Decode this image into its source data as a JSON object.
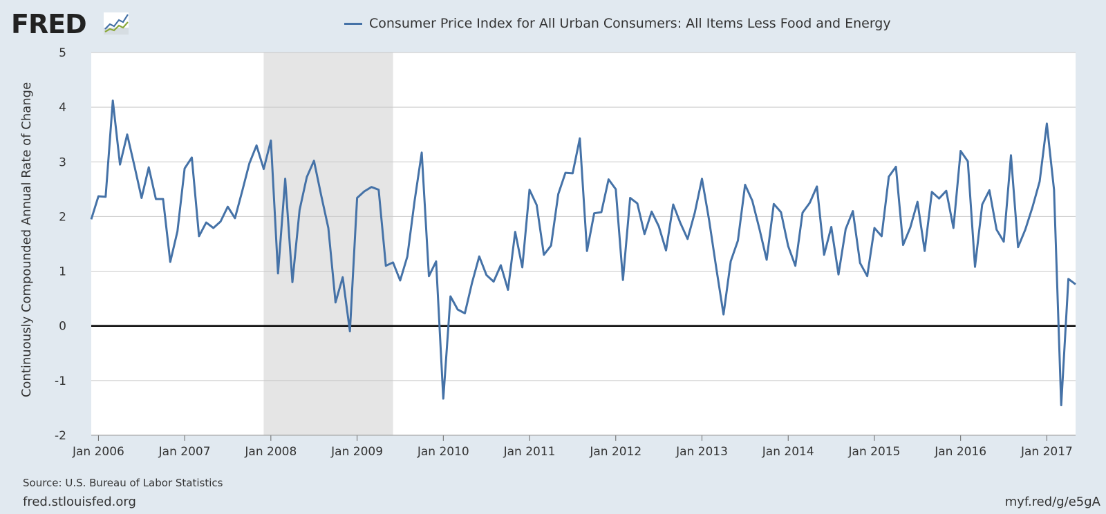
{
  "branding": {
    "logo_text": "FRED",
    "site": "fred.stlouisfed.org",
    "short_url": "myf.red/g/e5gA",
    "source": "Source: U.S. Bureau of Labor Statistics"
  },
  "colors": {
    "series": "#4572a7",
    "recession": "#e5e5e5",
    "background": "#e1e9f0",
    "plot": "#ffffff",
    "grid": "#c8c8c8",
    "zero_line": "#000000"
  },
  "chart_data": {
    "type": "line",
    "ylabel": "Continuously Compounded Annual Rate of Change",
    "xlabel": "",
    "ylim": [
      -2,
      5
    ],
    "xlim": [
      "2005-12",
      "2017-05"
    ],
    "y_ticks": [
      "5",
      "4",
      "3",
      "2",
      "1",
      "0",
      "-1",
      "-2"
    ],
    "x_ticks": [
      "Jan 2006",
      "Jan 2007",
      "Jan 2008",
      "Jan 2009",
      "Jan 2010",
      "Jan 2011",
      "Jan 2012",
      "Jan 2013",
      "Jan 2014",
      "Jan 2015",
      "Jan 2016",
      "Jan 2017"
    ],
    "grid": true,
    "legend_position": "top-center",
    "recessions": [
      {
        "start": "2007-12",
        "end": "2009-06"
      }
    ],
    "series": [
      {
        "name": "Consumer Price Index for All Urban Consumers: All Items Less Food and Energy",
        "start": "2005-12",
        "frequency": "monthly",
        "values": [
          1.95,
          2.37,
          2.36,
          4.12,
          2.95,
          3.5,
          2.93,
          2.34,
          2.9,
          2.32,
          2.32,
          1.17,
          1.73,
          2.88,
          3.08,
          1.64,
          1.89,
          1.79,
          1.91,
          2.18,
          1.97,
          2.46,
          2.97,
          3.3,
          2.87,
          3.39,
          0.96,
          2.69,
          0.8,
          2.12,
          2.72,
          3.02,
          2.39,
          1.79,
          0.43,
          0.89,
          -0.1,
          2.34,
          2.46,
          2.54,
          2.49,
          1.1,
          1.16,
          0.83,
          1.27,
          2.28,
          3.17,
          0.91,
          1.18,
          -1.33,
          0.54,
          0.3,
          0.23,
          0.79,
          1.27,
          0.93,
          0.81,
          1.11,
          0.66,
          1.72,
          1.07,
          2.49,
          2.21,
          1.3,
          1.47,
          2.41,
          2.8,
          2.79,
          3.43,
          1.37,
          2.06,
          2.08,
          2.68,
          2.5,
          0.84,
          2.34,
          2.24,
          1.68,
          2.09,
          1.82,
          1.38,
          2.22,
          1.88,
          1.59,
          2.07,
          2.69,
          1.93,
          1.05,
          0.21,
          1.18,
          1.56,
          2.58,
          2.29,
          1.77,
          1.21,
          2.23,
          2.08,
          1.46,
          1.1,
          2.07,
          2.25,
          2.55,
          1.3,
          1.81,
          0.94,
          1.77,
          2.1,
          1.15,
          0.91,
          1.79,
          1.64,
          2.73,
          2.91,
          1.48,
          1.8,
          2.27,
          1.37,
          2.45,
          2.33,
          2.47,
          1.79,
          3.2,
          3.01,
          1.08,
          2.22,
          2.48,
          1.76,
          1.54,
          3.12,
          1.44,
          1.76,
          2.17,
          2.64,
          3.7,
          2.49,
          -1.45,
          0.86,
          0.76
        ]
      }
    ]
  }
}
